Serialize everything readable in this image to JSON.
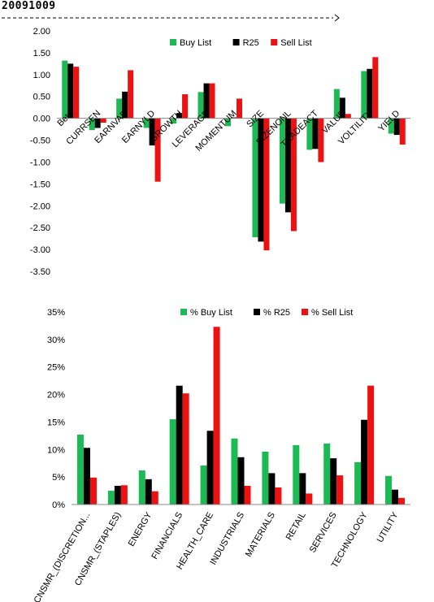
{
  "header": {
    "date": "20091009"
  },
  "colors": {
    "buy": "#1db954",
    "r25": "#000000",
    "sell": "#ee1111",
    "grid": "#c8c8c8",
    "axis": "#888888"
  },
  "chart_data": [
    {
      "type": "bar",
      "title": "",
      "categories": [
        "Beta",
        "CURRSEN",
        "EARNVAR",
        "EARNYLD",
        "GROWTH",
        "LEVERAGE",
        "MOMENTUM",
        "SIZE",
        "SIZENONL",
        "TRADEACT",
        "VALUE",
        "VOLTILITY",
        "YIELD"
      ],
      "series": [
        {
          "name": "Buy List",
          "values": [
            1.32,
            -0.27,
            0.45,
            -0.22,
            -0.12,
            0.6,
            -0.18,
            -2.72,
            -1.95,
            -0.72,
            0.67,
            1.08,
            -0.35
          ]
        },
        {
          "name": "R25",
          "values": [
            1.25,
            -0.22,
            0.61,
            -0.62,
            0.12,
            0.8,
            0.02,
            -2.82,
            -2.15,
            -0.7,
            0.47,
            1.13,
            -0.38
          ]
        },
        {
          "name": "Sell List",
          "values": [
            1.18,
            -0.1,
            1.1,
            -1.45,
            0.55,
            0.8,
            0.45,
            -3.02,
            -2.58,
            -1.0,
            0.1,
            1.4,
            -0.6
          ]
        }
      ],
      "ylim": [
        -3.5,
        2.0
      ],
      "yticks": [
        "2.00",
        "1.50",
        "1.00",
        "0.50",
        "0.00",
        "-0.50",
        "-1.00",
        "-1.50",
        "-2.00",
        "-2.50",
        "-3.00",
        "-3.50"
      ],
      "grid": false,
      "legend": "top-right"
    },
    {
      "type": "bar",
      "title": "",
      "categories": [
        "CNSMR_(DISCRETION...",
        "CNSMR_(STAPLES)",
        "ENERGY",
        "FINANCIALS",
        "HEALTH_CARE",
        "INDUSTRIALS",
        "MATERIALS",
        "RETAIL",
        "SERVICES",
        "TECHNOLOGY",
        "UTILITY"
      ],
      "series": [
        {
          "name": "% Buy List",
          "values": [
            12.7,
            2.5,
            6.2,
            15.5,
            7.1,
            12.0,
            9.6,
            10.8,
            11.1,
            7.7,
            5.2
          ]
        },
        {
          "name": "% R25",
          "values": [
            10.3,
            3.4,
            4.6,
            21.6,
            13.4,
            8.6,
            5.7,
            5.7,
            8.4,
            15.4,
            2.7
          ]
        },
        {
          "name": "% Sell List",
          "values": [
            4.9,
            3.5,
            2.4,
            20.2,
            32.3,
            3.4,
            3.1,
            2.0,
            5.3,
            21.6,
            1.2
          ]
        }
      ],
      "ylim": [
        0,
        35
      ],
      "yticks": [
        "35%",
        "30%",
        "25%",
        "20%",
        "15%",
        "10%",
        "5%",
        "0%"
      ],
      "grid": false,
      "legend": "top-right"
    }
  ]
}
